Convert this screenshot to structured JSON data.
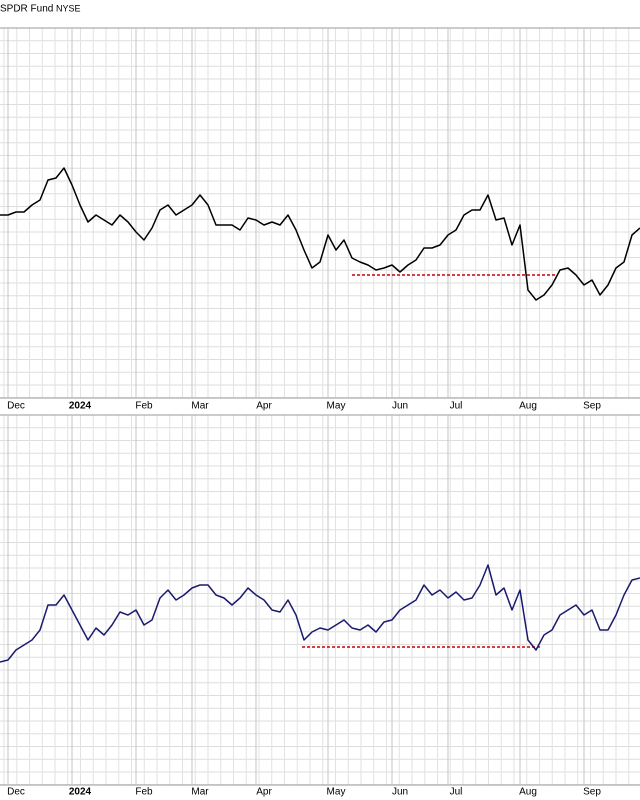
{
  "charts": [
    {
      "type": "line",
      "title": "SPDR Fund",
      "exchange": "NYSE",
      "color": "#000000",
      "categories": [
        null,
        null,
        "Dec",
        null,
        null,
        null,
        null,
        null,
        null,
        null,
        "2024",
        null,
        null,
        null,
        null,
        null,
        null,
        null,
        "Feb",
        null,
        null,
        null,
        null,
        null,
        null,
        "Mar",
        null,
        null,
        null,
        null,
        null,
        null,
        null,
        "Apr",
        null,
        null,
        null,
        null,
        null,
        null,
        null,
        null,
        "May",
        null,
        null,
        null,
        null,
        null,
        null,
        null,
        "Jun",
        null,
        null,
        null,
        null,
        null,
        null,
        "Jul",
        null,
        null,
        null,
        null,
        null,
        null,
        null,
        null,
        "Aug",
        null,
        null,
        null,
        null,
        null,
        null,
        null,
        "Sep",
        null,
        null,
        null,
        null,
        null,
        null
      ],
      "values": [
        183,
        183,
        186,
        186,
        193,
        198,
        218,
        220,
        230,
        213,
        193,
        176,
        183,
        178,
        173,
        183,
        176,
        166,
        158,
        170,
        188,
        193,
        183,
        188,
        193,
        203,
        193,
        173,
        173,
        173,
        168,
        180,
        178,
        173,
        176,
        173,
        183,
        168,
        148,
        130,
        136,
        163,
        148,
        158,
        140,
        136,
        133,
        128,
        130,
        133,
        126,
        133,
        138,
        150,
        150,
        153,
        163,
        168,
        183,
        188,
        188,
        203,
        178,
        180,
        153,
        173,
        108,
        98,
        103,
        113,
        128,
        130,
        123,
        113,
        118,
        103,
        113,
        130,
        136,
        163,
        170
      ],
      "ylim": [
        0,
        370
      ],
      "reference_line": {
        "y": 123,
        "x": [
          44,
          69.5
        ],
        "color": "#cc0000"
      }
    },
    {
      "type": "line",
      "color": "#1a1a6e",
      "categories": [
        null,
        null,
        "Dec",
        null,
        null,
        null,
        null,
        null,
        null,
        null,
        "2024",
        null,
        null,
        null,
        null,
        null,
        null,
        null,
        "Feb",
        null,
        null,
        null,
        null,
        null,
        null,
        "Mar",
        null,
        null,
        null,
        null,
        null,
        null,
        null,
        "Apr",
        null,
        null,
        null,
        null,
        null,
        null,
        null,
        null,
        "May",
        null,
        null,
        null,
        null,
        null,
        null,
        null,
        "Jun",
        null,
        null,
        null,
        null,
        null,
        null,
        "Jul",
        null,
        null,
        null,
        null,
        null,
        null,
        null,
        null,
        "Aug",
        null,
        null,
        null,
        null,
        null,
        null,
        null,
        "Sep",
        null,
        null,
        null,
        null,
        null,
        null
      ],
      "values": [
        123,
        125,
        135,
        140,
        145,
        155,
        180,
        180,
        190,
        175,
        160,
        145,
        157,
        150,
        160,
        173,
        170,
        175,
        160,
        165,
        187,
        195,
        185,
        190,
        197,
        200,
        200,
        190,
        187,
        180,
        187,
        197,
        190,
        185,
        175,
        173,
        185,
        170,
        145,
        153,
        157,
        155,
        160,
        165,
        157,
        155,
        160,
        153,
        163,
        165,
        175,
        180,
        185,
        200,
        190,
        195,
        187,
        193,
        185,
        187,
        200,
        220,
        190,
        197,
        175,
        195,
        145,
        135,
        150,
        155,
        170,
        175,
        180,
        170,
        175,
        155,
        155,
        170,
        190,
        205,
        207
      ],
      "ylim": [
        0,
        370
      ],
      "reference_line": {
        "y": 138,
        "x": [
          37.75,
          67.5
        ],
        "color": "#cc0000"
      }
    }
  ]
}
